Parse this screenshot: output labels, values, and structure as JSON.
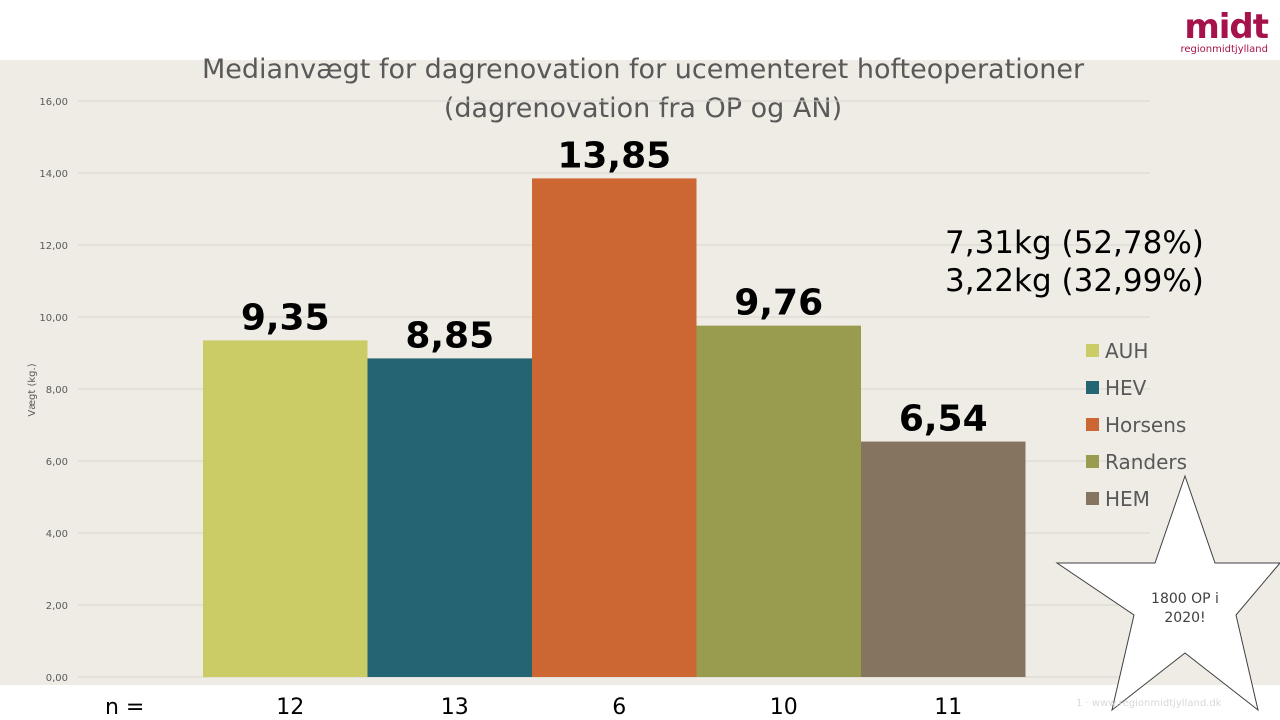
{
  "slide": {
    "logo_word": "midt",
    "logo_sub": "regionmidtjylland",
    "footer_text": "1 · www.regionmidtjylland.dk",
    "star_text_line1": "1800 OP i",
    "star_text_line2": "2020!",
    "annotation_line1": "7,31kg (52,78%)",
    "annotation_line2": "3,22kg (32,99%)",
    "n_label": "n ="
  },
  "chart_data": {
    "type": "bar",
    "title_line1": "Medianvægt for dagrenovation for ucementeret hofteoperationer",
    "title_line2": "(dagrenovation fra OP og AN)",
    "ylabel": "Vægt (kg.)",
    "ylim": [
      0,
      16
    ],
    "yticks": [
      "0,00",
      "2,00",
      "4,00",
      "6,00",
      "8,00",
      "10,00",
      "12,00",
      "14,00",
      "16,00"
    ],
    "grid": true,
    "legend_position": "right",
    "series": [
      {
        "name": "AUH",
        "value": 9.35,
        "label": "9,35",
        "n": "12",
        "color": "#cccc66"
      },
      {
        "name": "HEV",
        "value": 8.85,
        "label": "8,85",
        "n": "13",
        "color": "#256473"
      },
      {
        "name": "Horsens",
        "value": 13.85,
        "label": "13,85",
        "n": "6",
        "color": "#cc6633"
      },
      {
        "name": "Randers",
        "value": 9.76,
        "label": "9,76",
        "n": "10",
        "color": "#999b4f"
      },
      {
        "name": "HEM",
        "value": 6.54,
        "label": "6,54",
        "n": "11",
        "color": "#857460"
      }
    ]
  }
}
